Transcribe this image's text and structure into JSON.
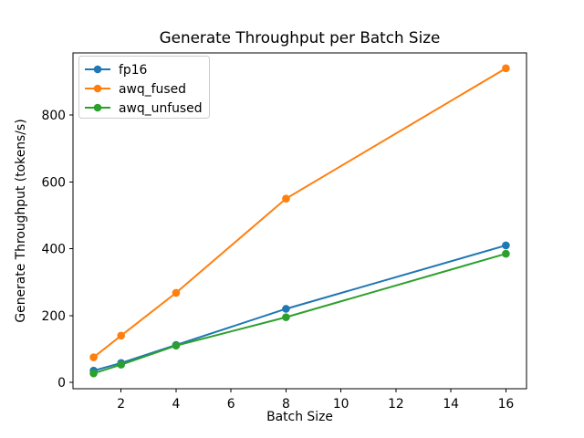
{
  "figure": {
    "background": "#ffffff",
    "text_color": "#000000",
    "spine_color": "#000000",
    "legend_border_color": "#cccccc"
  },
  "chart_data": {
    "type": "line",
    "title": "Generate Throughput per Batch Size",
    "xlabel": "Batch Size",
    "ylabel": "Generate Throughput (tokens/s)",
    "x": [
      1,
      2,
      4,
      8,
      16
    ],
    "series": [
      {
        "name": "fp16",
        "color": "#1f77b4",
        "values": [
          35,
          58,
          112,
          220,
          410
        ]
      },
      {
        "name": "awq_fused",
        "color": "#ff7f0e",
        "values": [
          75,
          140,
          268,
          550,
          940
        ]
      },
      {
        "name": "awq_unfused",
        "color": "#2ca02c",
        "values": [
          27,
          53,
          110,
          195,
          385
        ]
      }
    ],
    "marker": "o",
    "xticks": [
      2,
      4,
      6,
      8,
      10,
      12,
      14,
      16
    ],
    "yticks": [
      0,
      200,
      400,
      600,
      800
    ],
    "xlim": [
      0.25,
      16.75
    ],
    "ylim": [
      -19,
      986
    ],
    "grid": false,
    "legend_position": "upper left"
  }
}
